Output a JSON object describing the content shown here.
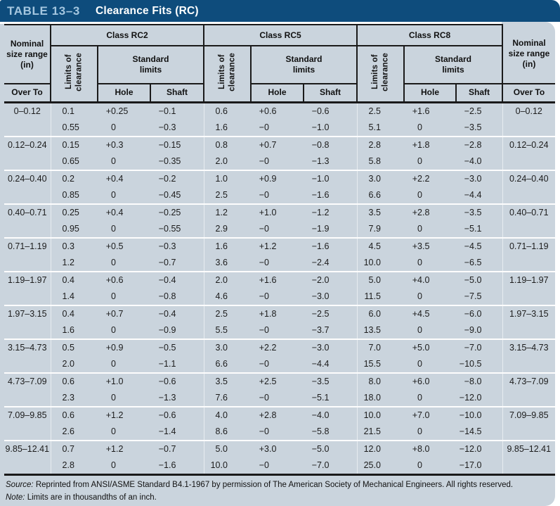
{
  "title": {
    "label": "TABLE 13–3",
    "caption": "Clearance Fits (RC)"
  },
  "colors": {
    "header_bar": "#0E4C7C",
    "table_number_text": "#A4C6DF",
    "card_background": "#CAD4DD",
    "border_black": "#1A1A1A"
  },
  "header": {
    "nominal": "Nominal size range (in)",
    "over_to": "Over To",
    "classes": [
      "Class RC2",
      "Class RC5",
      "Class RC8"
    ],
    "limits_of_clearance": "Limits of\nclearance",
    "standard_limits": "Standard\nlimits",
    "hole": "Hole",
    "shaft": "Shaft"
  },
  "table": {
    "groups": [
      {
        "range": "0–0.12",
        "lines": [
          [
            "0.1",
            "+0.25",
            "−0.1",
            "0.6",
            "+0.6",
            "−0.6",
            "2.5",
            "+1.6",
            "−2.5"
          ],
          [
            "0.55",
            "0",
            "−0.3",
            "1.6",
            "−0",
            "−1.0",
            "5.1",
            "0",
            "−3.5"
          ]
        ]
      },
      {
        "range": "0.12–0.24",
        "lines": [
          [
            "0.15",
            "+0.3",
            "−0.15",
            "0.8",
            "+0.7",
            "−0.8",
            "2.8",
            "+1.8",
            "−2.8"
          ],
          [
            "0.65",
            "0",
            "−0.35",
            "2.0",
            "−0",
            "−1.3",
            "5.8",
            "0",
            "−4.0"
          ]
        ]
      },
      {
        "range": "0.24–0.40",
        "lines": [
          [
            "0.2",
            "+0.4",
            "−0.2",
            "1.0",
            "+0.9",
            "−1.0",
            "3.0",
            "+2.2",
            "−3.0"
          ],
          [
            "0.85",
            "0",
            "−0.45",
            "2.5",
            "−0",
            "−1.6",
            "6.6",
            "0",
            "−4.4"
          ]
        ]
      },
      {
        "range": "0.40–0.71",
        "lines": [
          [
            "0.25",
            "+0.4",
            "−0.25",
            "1.2",
            "+1.0",
            "−1.2",
            "3.5",
            "+2.8",
            "−3.5"
          ],
          [
            "0.95",
            "0",
            "−0.55",
            "2.9",
            "−0",
            "−1.9",
            "7.9",
            "0",
            "−5.1"
          ]
        ]
      },
      {
        "range": "0.71–1.19",
        "lines": [
          [
            "0.3",
            "+0.5",
            "−0.3",
            "1.6",
            "+1.2",
            "−1.6",
            "4.5",
            "+3.5",
            "−4.5"
          ],
          [
            "1.2",
            "0",
            "−0.7",
            "3.6",
            "−0",
            "−2.4",
            "10.0",
            "0",
            "−6.5"
          ]
        ]
      },
      {
        "range": "1.19–1.97",
        "lines": [
          [
            "0.4",
            "+0.6",
            "−0.4",
            "2.0",
            "+1.6",
            "−2.0",
            "5.0",
            "+4.0",
            "−5.0"
          ],
          [
            "1.4",
            "0",
            "−0.8",
            "4.6",
            "−0",
            "−3.0",
            "11.5",
            "0",
            "−7.5"
          ]
        ]
      },
      {
        "range": "1.97–3.15",
        "lines": [
          [
            "0.4",
            "+0.7",
            "−0.4",
            "2.5",
            "+1.8",
            "−2.5",
            "6.0",
            "+4.5",
            "−6.0"
          ],
          [
            "1.6",
            "0",
            "−0.9",
            "5.5",
            "−0",
            "−3.7",
            "13.5",
            "0",
            "−9.0"
          ]
        ]
      },
      {
        "range": "3.15–4.73",
        "lines": [
          [
            "0.5",
            "+0.9",
            "−0.5",
            "3.0",
            "+2.2",
            "−3.0",
            "7.0",
            "+5.0",
            "−7.0"
          ],
          [
            "2.0",
            "0",
            "−1.1",
            "6.6",
            "−0",
            "−4.4",
            "15.5",
            "0",
            "−10.5"
          ]
        ]
      },
      {
        "range": "4.73–7.09",
        "lines": [
          [
            "0.6",
            "+1.0",
            "−0.6",
            "3.5",
            "+2.5",
            "−3.5",
            "8.0",
            "+6.0",
            "−8.0"
          ],
          [
            "2.3",
            "0",
            "−1.3",
            "7.6",
            "−0",
            "−5.1",
            "18.0",
            "0",
            "−12.0"
          ]
        ]
      },
      {
        "range": "7.09–9.85",
        "lines": [
          [
            "0.6",
            "+1.2",
            "−0.6",
            "4.0",
            "+2.8",
            "−4.0",
            "10.0",
            "+7.0",
            "−10.0"
          ],
          [
            "2.6",
            "0",
            "−1.4",
            "8.6",
            "−0",
            "−5.8",
            "21.5",
            "0",
            "−14.5"
          ]
        ]
      },
      {
        "range": "9.85–12.41",
        "lines": [
          [
            "0.7",
            "+1.2",
            "−0.7",
            "5.0",
            "+3.0",
            "−5.0",
            "12.0",
            "+8.0",
            "−12.0"
          ],
          [
            "2.8",
            "0",
            "−1.6",
            "10.0",
            "−0",
            "−7.0",
            "25.0",
            "0",
            "−17.0"
          ]
        ]
      }
    ]
  },
  "footer": {
    "source_label": "Source:",
    "source_text": "Reprinted from ANSI/ASME Standard B4.1-1967 by permission of The American Society of Mechanical Engineers. All rights reserved.",
    "note_label": "Note:",
    "note_text": "Limits are in thousandths of an inch."
  }
}
